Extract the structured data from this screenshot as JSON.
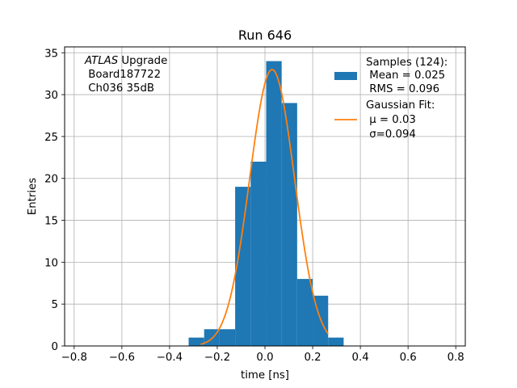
{
  "chart_data": {
    "type": "bar",
    "title": "Run 646",
    "xlabel": "time [ns]",
    "ylabel": "Entries",
    "xlim": [
      -0.84,
      0.84
    ],
    "ylim": [
      0,
      35.7
    ],
    "xticks": [
      -0.8,
      -0.6,
      -0.4,
      -0.2,
      0.0,
      0.2,
      0.4,
      0.6,
      0.8
    ],
    "xtick_labels": [
      "−0.8",
      "−0.6",
      "−0.4",
      "−0.2",
      "0.0",
      "0.2",
      "0.4",
      "0.6",
      "0.8"
    ],
    "yticks": [
      0,
      5,
      10,
      15,
      20,
      25,
      30,
      35
    ],
    "ytick_labels": [
      "0",
      "5",
      "10",
      "15",
      "20",
      "25",
      "30",
      "35"
    ],
    "grid": true,
    "legend_position": "top-right",
    "bar_color": "#1f77b4",
    "fit_color": "#ff7f0e",
    "histogram": {
      "name": "Samples (124):",
      "bin_edges": [
        -0.32,
        -0.255,
        -0.19,
        -0.125,
        -0.06,
        0.005,
        0.07,
        0.135,
        0.2,
        0.265,
        0.33
      ],
      "counts": [
        1,
        2,
        2,
        19,
        22,
        34,
        29,
        8,
        6,
        1
      ],
      "stats": [
        " Mean = 0.025",
        " RMS = 0.096"
      ]
    },
    "fit": {
      "name": "Gaussian Fit:",
      "mu": 0.03,
      "sigma": 0.094,
      "amplitude": 33.0,
      "x_range": [
        -0.27,
        0.265
      ],
      "labels": [
        " μ = 0.03",
        " σ=0.094"
      ]
    },
    "annotation": {
      "line1_italic": "ATLAS",
      "line1_rest": " Upgrade",
      "line2": " Board187722",
      "line3": " Ch036 35dB"
    }
  }
}
